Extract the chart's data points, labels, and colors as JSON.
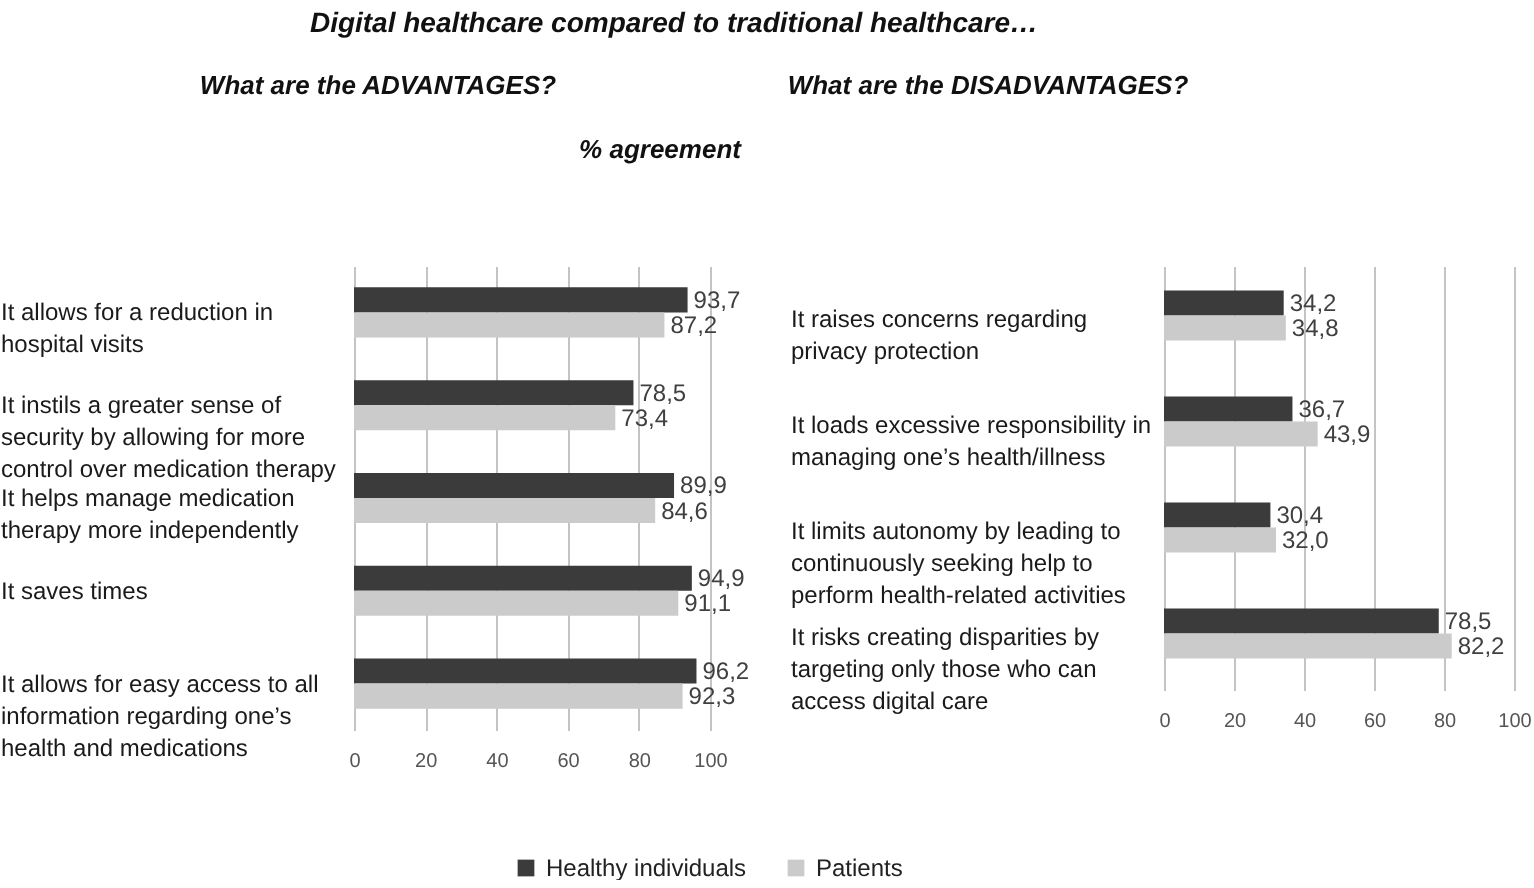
{
  "chart_data": [
    {
      "type": "bar",
      "orientation": "horizontal",
      "title": "Digital healthcare compared to traditional healthcare…",
      "subtitle": "What are the ADVANTAGES?",
      "annotations": [
        "% agreement"
      ],
      "categories": [
        "It allows for a reduction in hospital visits",
        "It instils a greater sense of security by allowing for more control over medication therapy",
        "It helps manage medication therapy more independently",
        "It saves times",
        "It allows for easy access to all information regarding one’s health and medications"
      ],
      "series": [
        {
          "name": "Healthy individuals",
          "color": "#3b3b3b",
          "values": [
            93.7,
            78.5,
            89.9,
            94.9,
            96.2
          ],
          "value_labels": [
            "93,7",
            "78,5",
            "89,9",
            "94,9",
            "96,2"
          ]
        },
        {
          "name": "Patients",
          "color": "#cbcbcb",
          "values": [
            87.2,
            73.4,
            84.6,
            91.1,
            92.3
          ],
          "value_labels": [
            "87,2",
            "73,4",
            "84,6",
            "91,1",
            "92,3"
          ]
        }
      ],
      "xlim": [
        0,
        100
      ],
      "xticks": [
        0,
        20,
        40,
        60,
        80,
        100
      ],
      "grid": "x",
      "legend": "bottom"
    },
    {
      "type": "bar",
      "orientation": "horizontal",
      "subtitle": "What are the DISADVANTAGES?",
      "categories": [
        "It raises concerns regarding privacy protection",
        "It loads excessive responsibility in managing one’s health/illness",
        "It limits autonomy by leading to continuously seeking help to perform health-related activities",
        "It risks creating disparities by targeting only those who can access digital care"
      ],
      "series": [
        {
          "name": "Healthy individuals",
          "color": "#3b3b3b",
          "values": [
            34.2,
            36.7,
            30.4,
            78.5
          ],
          "value_labels": [
            "34,2",
            "36,7",
            "30,4",
            "78,5"
          ]
        },
        {
          "name": "Patients",
          "color": "#cbcbcb",
          "values": [
            34.8,
            43.9,
            32.0,
            82.2
          ],
          "value_labels": [
            "34,8",
            "43,9",
            "32,0",
            "82,2"
          ]
        }
      ],
      "xlim": [
        0,
        100
      ],
      "xticks": [
        0,
        20,
        40,
        60,
        80,
        100
      ],
      "grid": "x"
    }
  ]
}
